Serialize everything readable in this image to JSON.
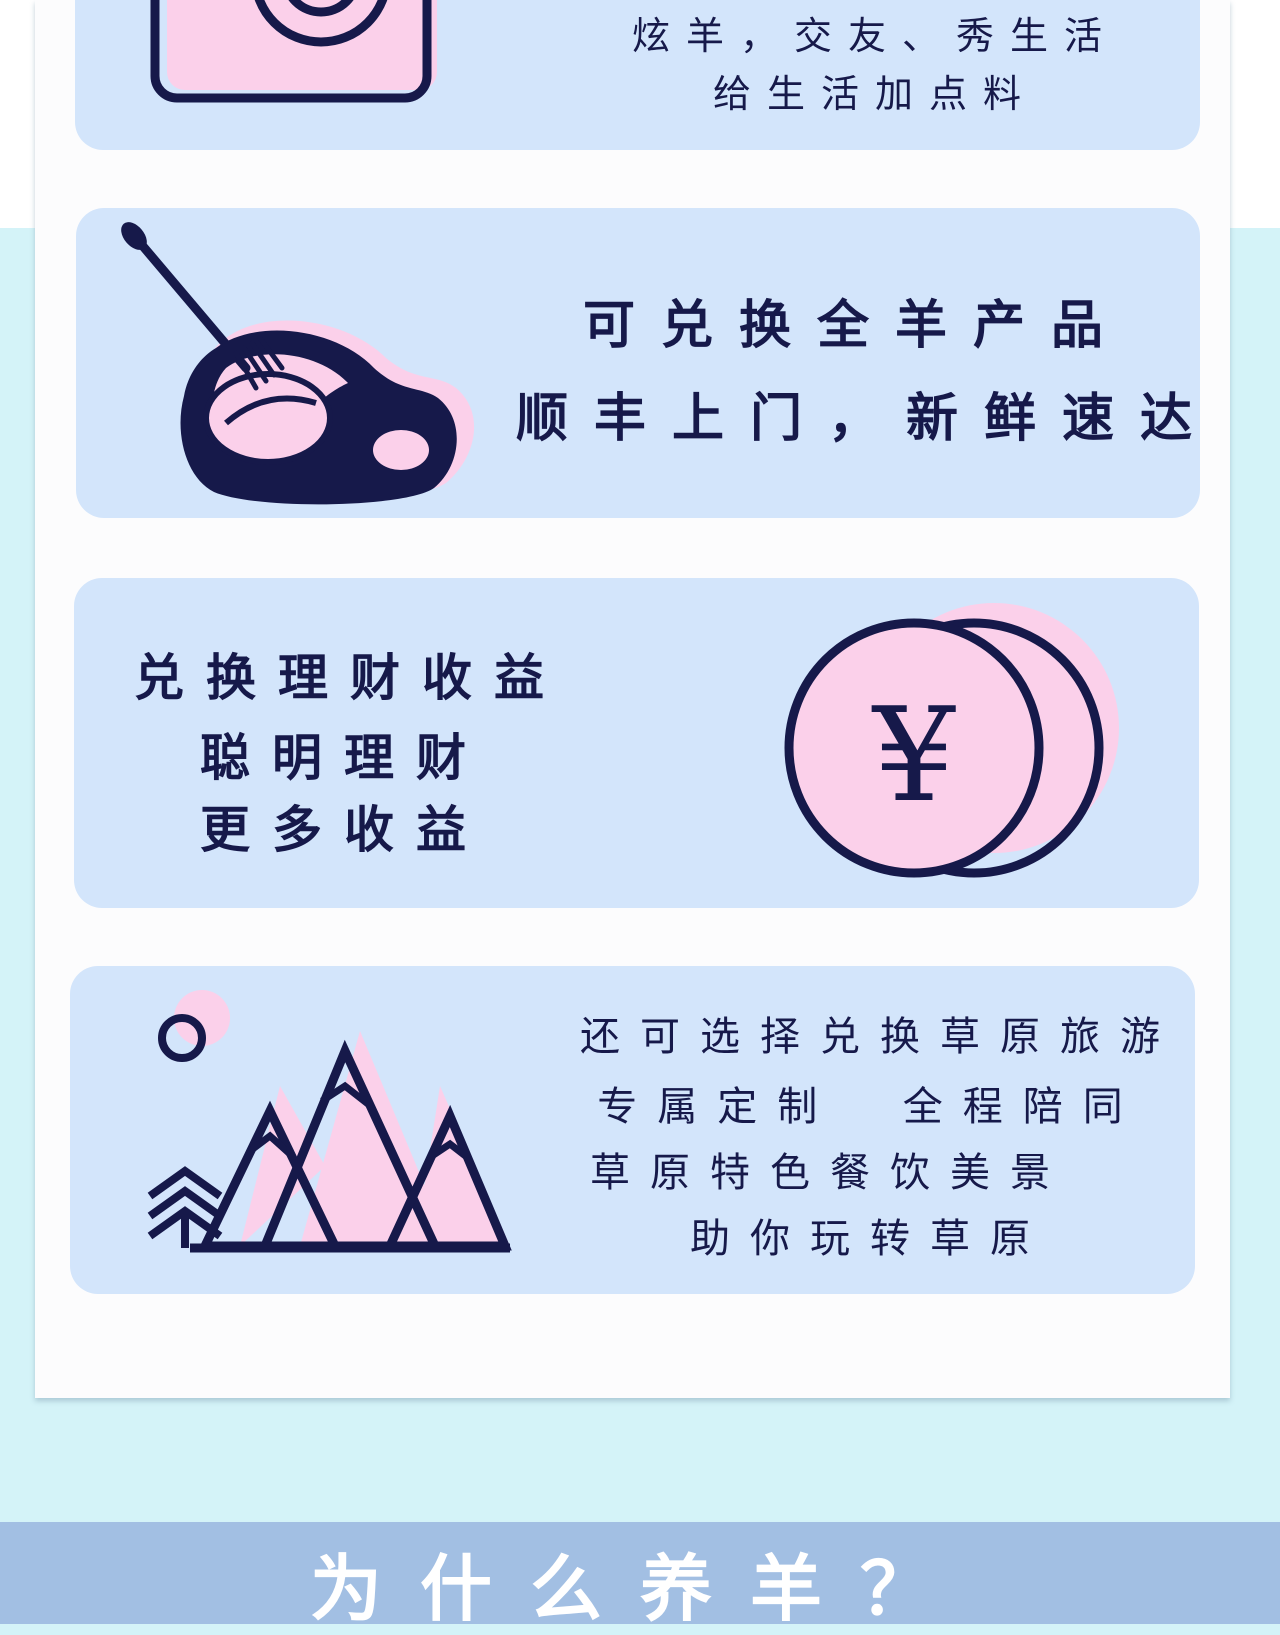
{
  "cards": [
    {
      "id": "social",
      "icon": "camera-icon",
      "lines": [
        "炫羊，交友、秀生活",
        "给生活加点料"
      ]
    },
    {
      "id": "exchange-lamb",
      "icon": "lamb-steak-fork-icon",
      "lines": [
        "可兑换全羊产品",
        "顺丰上门，新鲜速达"
      ]
    },
    {
      "id": "finance",
      "icon": "yuan-coin-icon",
      "coin_symbol": "¥",
      "lines": [
        "兑换理财收益",
        "聪明理财",
        "更多收益"
      ]
    },
    {
      "id": "travel",
      "icon": "mountains-icon",
      "lines": [
        "还可选择兑换草原旅游",
        "专属定制  全程陪同",
        "草原特色餐饮美景",
        "助你玩转草原"
      ]
    }
  ],
  "footer": {
    "title": "为什么养羊？"
  },
  "colors": {
    "background": "#d4f3f8",
    "panel": "#fcfcfd",
    "card": "#d3e5fb",
    "navy": "#16194a",
    "pink": "#fbd0ea",
    "footer_bar": "#a2bfe3"
  }
}
